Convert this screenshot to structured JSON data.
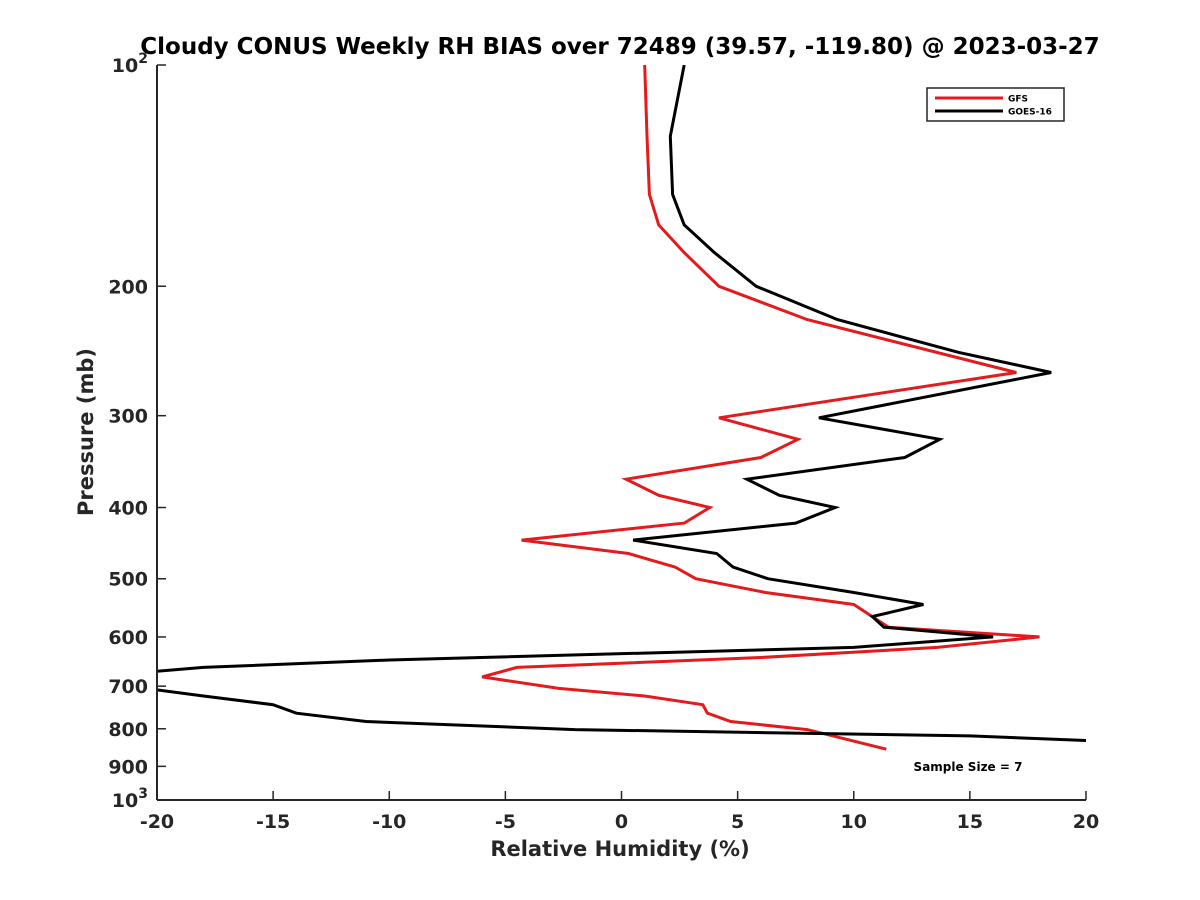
{
  "chart_data": {
    "type": "line",
    "title": "Cloudy CONUS Weekly RH BIAS over 72489 (39.57, -119.80) @ 2023-03-27",
    "xlabel": "Relative Humidity (%)",
    "ylabel": "Pressure (mb)",
    "xlim": [
      -20,
      20
    ],
    "ylim": [
      100,
      1000
    ],
    "y_scale": "log",
    "y_reversed": true,
    "grid": false,
    "legend_position": "top-right",
    "x_ticks": [
      "-20",
      "-15",
      "-10",
      "-5",
      "0",
      "5",
      "10",
      "15",
      "20"
    ],
    "y_ticks": [
      {
        "value": 100,
        "base": "10",
        "exp": "2"
      },
      {
        "value": 200,
        "label": "200"
      },
      {
        "value": 300,
        "label": "300"
      },
      {
        "value": 400,
        "label": "400"
      },
      {
        "value": 500,
        "label": "500"
      },
      {
        "value": 600,
        "label": "600"
      },
      {
        "value": 700,
        "label": "700"
      },
      {
        "value": 800,
        "label": "800"
      },
      {
        "value": 900,
        "label": "900"
      },
      {
        "value": 1000,
        "base": "10",
        "exp": "3"
      }
    ],
    "annotation": "Sample Size = 7",
    "series": [
      {
        "name": "GFS",
        "color": "#e41a1c",
        "points": [
          [
            1.0,
            100
          ],
          [
            1.1,
            125
          ],
          [
            1.2,
            150
          ],
          [
            1.6,
            165
          ],
          [
            2.7,
            180
          ],
          [
            4.2,
            200
          ],
          [
            8.0,
            222
          ],
          [
            17.0,
            262
          ],
          [
            4.2,
            302
          ],
          [
            7.6,
            323
          ],
          [
            6.0,
            342
          ],
          [
            0.2,
            366
          ],
          [
            1.6,
            385
          ],
          [
            3.8,
            400
          ],
          [
            2.7,
            420
          ],
          [
            -4.3,
            443
          ],
          [
            0.3,
            462
          ],
          [
            2.3,
            482
          ],
          [
            3.2,
            500
          ],
          [
            6.2,
            522
          ],
          [
            10.0,
            542
          ],
          [
            10.8,
            563
          ],
          [
            11.5,
            582
          ],
          [
            18.0,
            600
          ],
          [
            13.6,
            620
          ],
          [
            6.0,
            640
          ],
          [
            -4.5,
            660
          ],
          [
            -6.0,
            680
          ],
          [
            -2.7,
            705
          ],
          [
            1.0,
            722
          ],
          [
            3.5,
            742
          ],
          [
            3.7,
            762
          ],
          [
            4.7,
            782
          ],
          [
            8.0,
            802
          ],
          [
            11.4,
            853
          ]
        ]
      },
      {
        "name": "GOES-16",
        "color": "#000000",
        "points": [
          [
            2.7,
            100
          ],
          [
            2.1,
            125
          ],
          [
            2.2,
            150
          ],
          [
            2.7,
            165
          ],
          [
            4.0,
            180
          ],
          [
            5.8,
            200
          ],
          [
            9.3,
            222
          ],
          [
            14.5,
            246
          ],
          [
            18.5,
            262
          ],
          [
            8.5,
            302
          ],
          [
            13.7,
            323
          ],
          [
            12.2,
            342
          ],
          [
            5.4,
            366
          ],
          [
            6.8,
            385
          ],
          [
            9.2,
            400
          ],
          [
            7.5,
            420
          ],
          [
            0.5,
            443
          ],
          [
            4.1,
            462
          ],
          [
            4.8,
            482
          ],
          [
            6.3,
            500
          ],
          [
            10.0,
            522
          ],
          [
            13.0,
            542
          ],
          [
            10.8,
            563
          ],
          [
            11.3,
            582
          ],
          [
            16.0,
            600
          ],
          [
            10.0,
            620
          ],
          [
            -10.0,
            645
          ],
          [
            -18.0,
            660
          ],
          [
            -20.5,
            670
          ],
          [
            -20.5,
            705
          ],
          [
            -18.0,
            722
          ],
          [
            -15.0,
            742
          ],
          [
            -14.0,
            762
          ],
          [
            -11.0,
            782
          ],
          [
            -2.0,
            802
          ],
          [
            15.0,
            818
          ],
          [
            20.0,
            830
          ]
        ]
      }
    ]
  }
}
